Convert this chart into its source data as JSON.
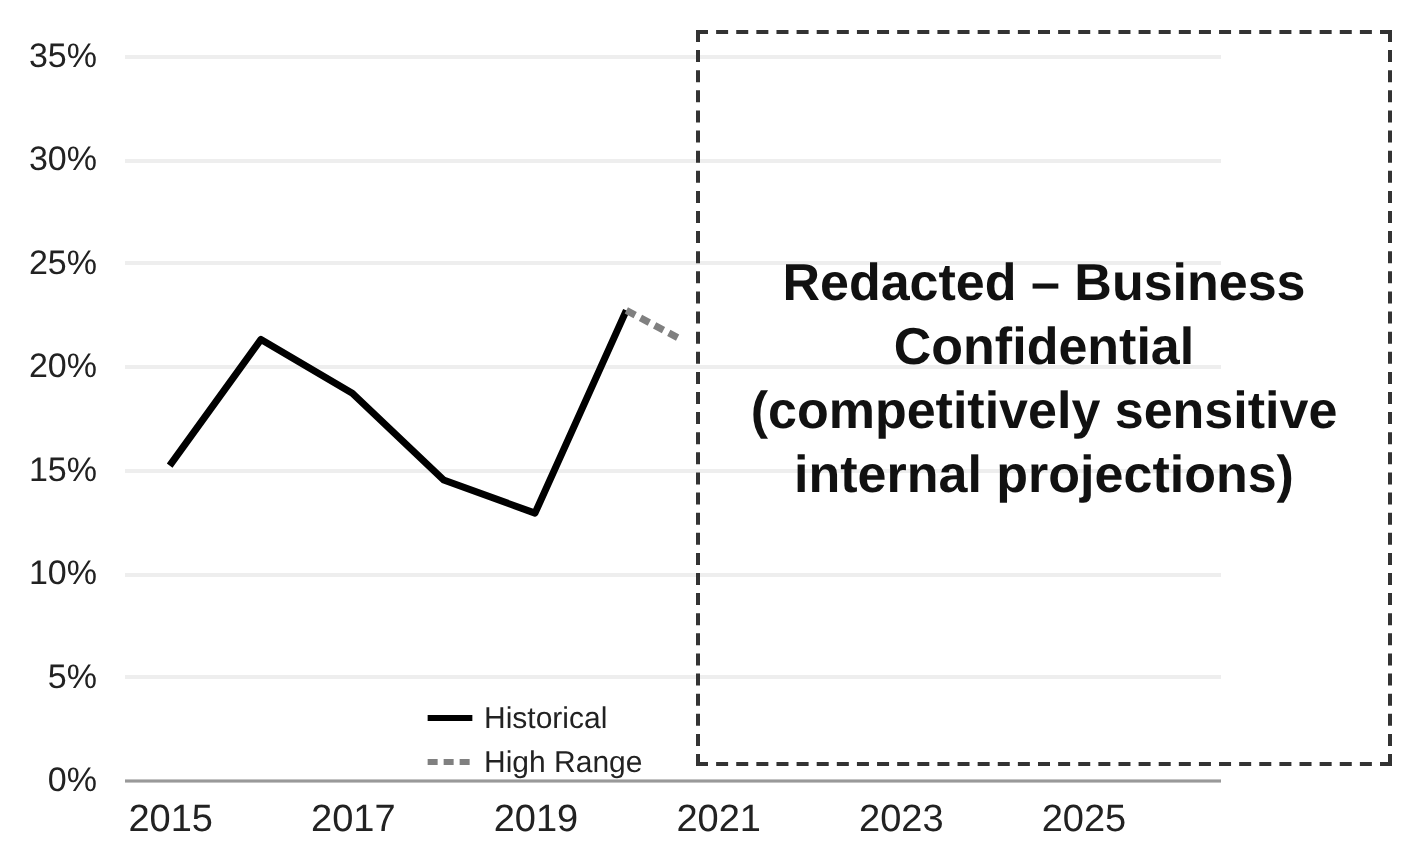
{
  "chart_data": {
    "type": "line",
    "x": [
      2015,
      2016,
      2017,
      2018,
      2019,
      2020
    ],
    "series": [
      {
        "name": "Historical",
        "color": "#000000",
        "line_style": "solid",
        "values": [
          15.2,
          21.3,
          18.7,
          14.5,
          12.9,
          22.7
        ]
      },
      {
        "name": "High Range",
        "color": "#808080",
        "line_style": "dashed",
        "x": [
          2020,
          2020.6
        ],
        "values": [
          22.7,
          21.3
        ]
      }
    ],
    "xlim": [
      2014.5,
      2026.5
    ],
    "xticks": [
      2015,
      2017,
      2019,
      2021,
      2023,
      2025
    ],
    "ylim": [
      0,
      35
    ],
    "yticks": [
      {
        "value": 0,
        "label": "0%"
      },
      {
        "value": 5,
        "label": "5%"
      },
      {
        "value": 10,
        "label": "10%"
      },
      {
        "value": 15,
        "label": "15%"
      },
      {
        "value": 20,
        "label": "20%"
      },
      {
        "value": 25,
        "label": "25%"
      },
      {
        "value": 30,
        "label": "30%"
      },
      {
        "value": 35,
        "label": "35%"
      }
    ],
    "grid": "y",
    "legend": "bottom",
    "marker": "none",
    "annotations": [
      "Redacted – Business Confidential",
      "(competitively sensitive internal projections)"
    ]
  }
}
